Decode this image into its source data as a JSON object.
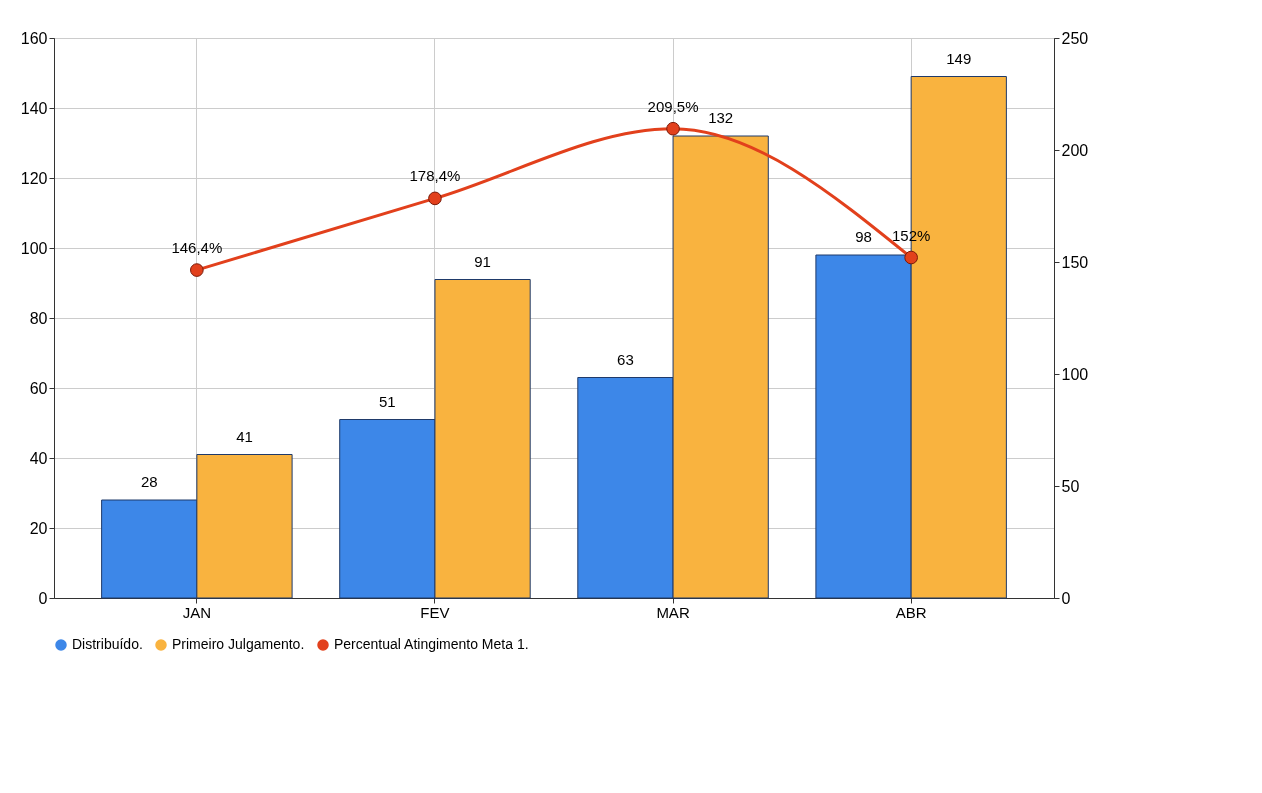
{
  "chart_data": {
    "type": "bar",
    "categories": [
      "JAN",
      "FEV",
      "MAR",
      "ABR"
    ],
    "series": [
      {
        "name": "Distribuído.",
        "color": "#3d87e8",
        "values": [
          28,
          51,
          63,
          98
        ]
      },
      {
        "name": "Primeiro Julgamento.",
        "color": "#f9b33f",
        "values": [
          41,
          91,
          132,
          149
        ]
      },
      {
        "name": "Percentual Atingimento Meta 1.",
        "type": "line",
        "axis": "y2",
        "color": "#e2401c",
        "values": [
          146.4,
          178.4,
          209.5,
          152
        ],
        "value_labels": [
          "146,4%",
          "178,4%",
          "209,5%",
          "152%"
        ]
      }
    ],
    "ylim": [
      0,
      160
    ],
    "yticks": [
      0,
      20,
      40,
      60,
      80,
      100,
      120,
      140,
      160
    ],
    "y2lim": [
      0,
      250
    ],
    "y2ticks": [
      0,
      50,
      100,
      150,
      200,
      250
    ],
    "data_labels": true,
    "grid": true,
    "legend": "bottom",
    "marker": "circle"
  }
}
